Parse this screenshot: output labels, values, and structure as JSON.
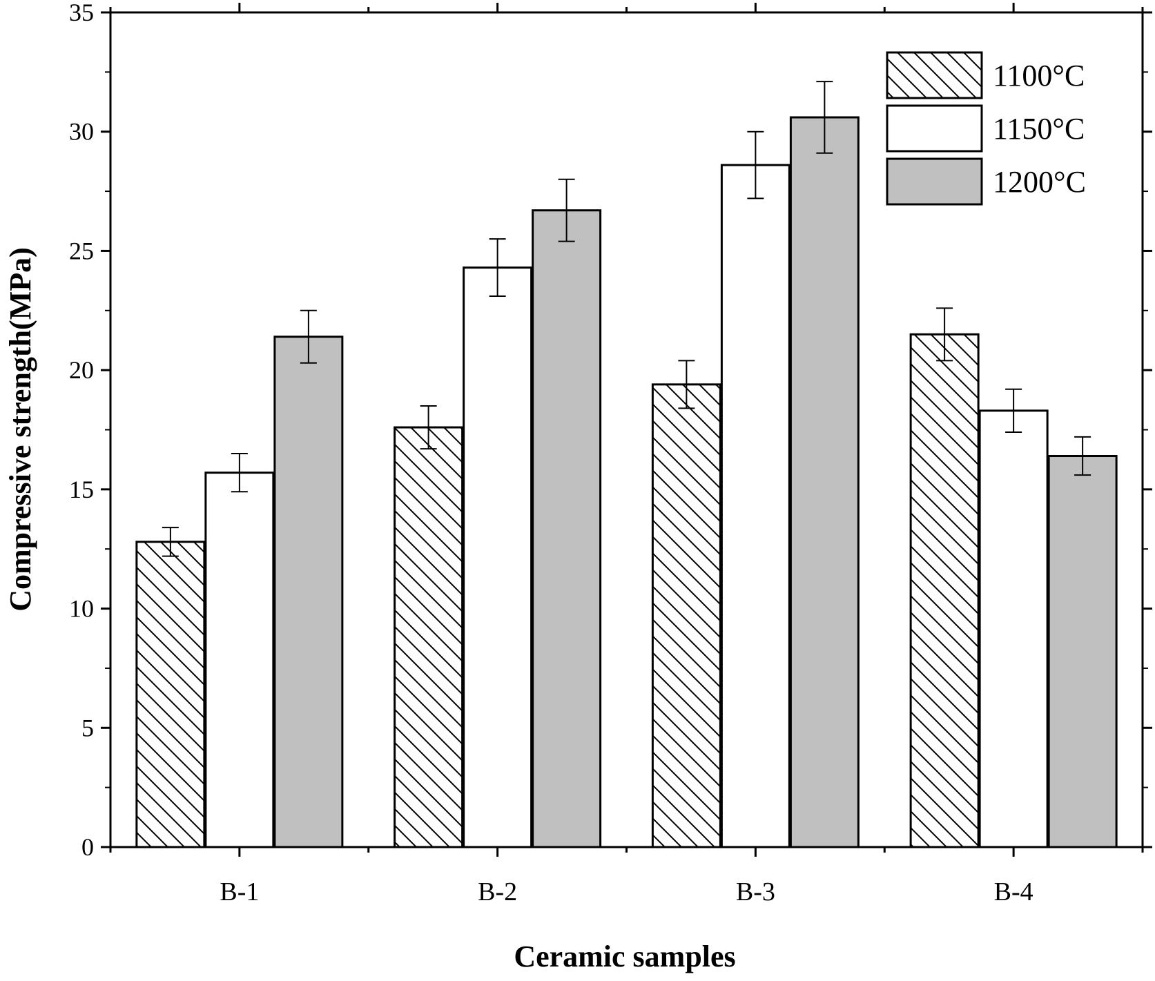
{
  "chart_data": {
    "type": "bar",
    "xlabel": "Ceramic samples",
    "ylabel": "Compressive strength(MPa)",
    "categories": [
      "B-1",
      "B-2",
      "B-3",
      "B-4"
    ],
    "ylim": [
      0,
      35
    ],
    "yticks": [
      0,
      5,
      10,
      15,
      20,
      25,
      30,
      35
    ],
    "legend_position": "top-right",
    "grid": false,
    "series": [
      {
        "name": "1100°C",
        "fill": "hatch",
        "color": "#ffffff",
        "values": [
          12.8,
          17.6,
          19.4,
          21.5
        ],
        "errors": [
          0.6,
          0.9,
          1.0,
          1.1
        ]
      },
      {
        "name": "1150°C",
        "fill": "solid",
        "color": "#ffffff",
        "values": [
          15.7,
          24.3,
          28.6,
          18.3
        ],
        "errors": [
          0.8,
          1.2,
          1.4,
          0.9
        ]
      },
      {
        "name": "1200°C",
        "fill": "solid",
        "color": "#c0c0c0",
        "values": [
          21.4,
          26.7,
          30.6,
          16.4
        ],
        "errors": [
          1.1,
          1.3,
          1.5,
          0.8
        ]
      }
    ]
  }
}
